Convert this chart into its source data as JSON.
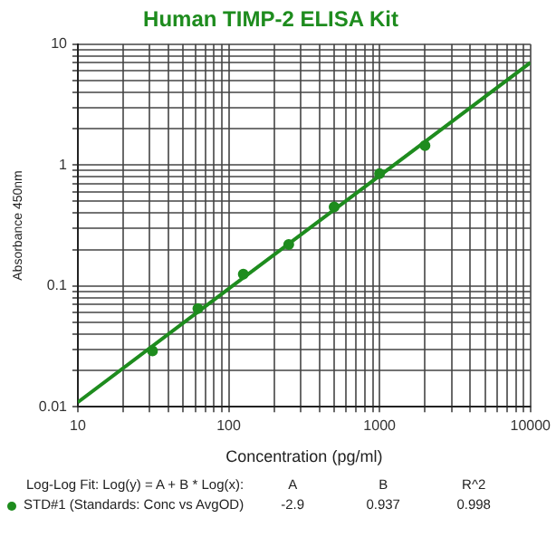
{
  "chart_data": {
    "type": "scatter",
    "title": "Human TIMP-2 ELISA Kit",
    "xlabel": "Concentration (pg/ml)",
    "ylabel": "Absorbance 450nm",
    "log": "xy",
    "grid": true,
    "legend": "bottom",
    "marker": "circle",
    "xlim": [
      10,
      10000
    ],
    "ylim": [
      0.01,
      10
    ],
    "xticks": [
      10,
      {
        "value": 20,
        "label": null
      },
      {
        "value": 30,
        "label": null
      },
      {
        "value": 40,
        "label": null
      },
      {
        "value": 50,
        "label": null
      },
      {
        "value": 60,
        "label": null
      },
      {
        "value": 70,
        "label": null
      },
      {
        "value": 80,
        "label": null
      },
      {
        "value": 90,
        "label": null
      },
      100,
      {
        "value": 200,
        "label": null
      },
      {
        "value": 300,
        "label": null
      },
      {
        "value": 400,
        "label": null
      },
      {
        "value": 500,
        "label": null
      },
      {
        "value": 600,
        "label": null
      },
      {
        "value": 700,
        "label": null
      },
      {
        "value": 800,
        "label": null
      },
      {
        "value": 900,
        "label": null
      },
      1000,
      {
        "value": 2000,
        "label": null
      },
      {
        "value": 3000,
        "label": null
      },
      {
        "value": 4000,
        "label": null
      },
      {
        "value": 5000,
        "label": null
      },
      {
        "value": 6000,
        "label": null
      },
      {
        "value": 7000,
        "label": null
      },
      {
        "value": 8000,
        "label": null
      },
      {
        "value": 9000,
        "label": null
      },
      10000
    ],
    "yticks": [
      0.01,
      {
        "value": 0.02,
        "label": null
      },
      {
        "value": 0.03,
        "label": null
      },
      {
        "value": 0.04,
        "label": null
      },
      {
        "value": 0.05,
        "label": null
      },
      {
        "value": 0.06,
        "label": null
      },
      {
        "value": 0.07,
        "label": null
      },
      {
        "value": 0.08,
        "label": null
      },
      {
        "value": 0.09,
        "label": null
      },
      0.1,
      {
        "value": 0.2,
        "label": null
      },
      {
        "value": 0.3,
        "label": null
      },
      {
        "value": 0.4,
        "label": null
      },
      {
        "value": 0.5,
        "label": null
      },
      {
        "value": 0.6,
        "label": null
      },
      {
        "value": 0.7,
        "label": null
      },
      {
        "value": 0.8,
        "label": null
      },
      {
        "value": 0.9,
        "label": null
      },
      1,
      {
        "value": 2,
        "label": null
      },
      {
        "value": 3,
        "label": null
      },
      {
        "value": 4,
        "label": null
      },
      {
        "value": 5,
        "label": null
      },
      {
        "value": 6,
        "label": null
      },
      {
        "value": 7,
        "label": null
      },
      {
        "value": 8,
        "label": null
      },
      {
        "value": 9,
        "label": null
      },
      10
    ],
    "series": [
      {
        "name": "STD#1 (Standards: Conc vs AvgOD)",
        "color": "#1e8c1e",
        "x": [
          31.25,
          62.5,
          125,
          250,
          500,
          1000,
          2000
        ],
        "values": [
          0.029,
          0.065,
          0.125,
          0.22,
          0.45,
          0.85,
          1.45
        ]
      },
      {
        "type": "line",
        "marker": "none",
        "color": "#1e8c1e",
        "x": [
          10,
          100,
          1000,
          10000
        ],
        "values": [
          0.0109,
          0.0948,
          0.815,
          7.05
        ]
      }
    ],
    "annotations": [
      "Log-Log Fit: Log(y) = A + B * Log(x):",
      "A",
      "B",
      "R^2",
      "-2.9",
      "0.937",
      "0.998"
    ]
  }
}
